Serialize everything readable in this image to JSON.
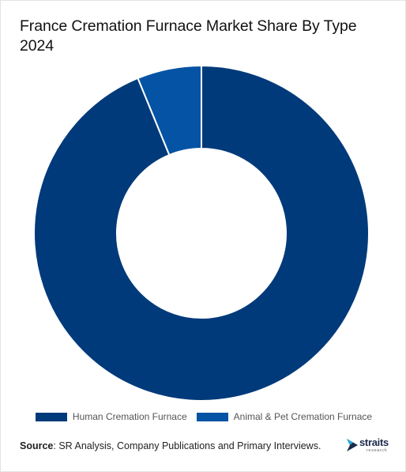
{
  "chart_data": {
    "type": "pie",
    "title": "France Cremation Furnace Market Share By Type 2024",
    "categories": [
      "Human Cremation Furnace",
      "Animal & Pet Cremation Furnace"
    ],
    "values": [
      93.8,
      6.2
    ],
    "colors": [
      "#003a7a",
      "#0453a4"
    ],
    "donut": true,
    "legend_position": "bottom"
  },
  "source": {
    "label": "Source",
    "text": ": SR Analysis, Company Publications and Primary Interviews."
  },
  "logo": {
    "word": "straits",
    "sub": "research"
  }
}
